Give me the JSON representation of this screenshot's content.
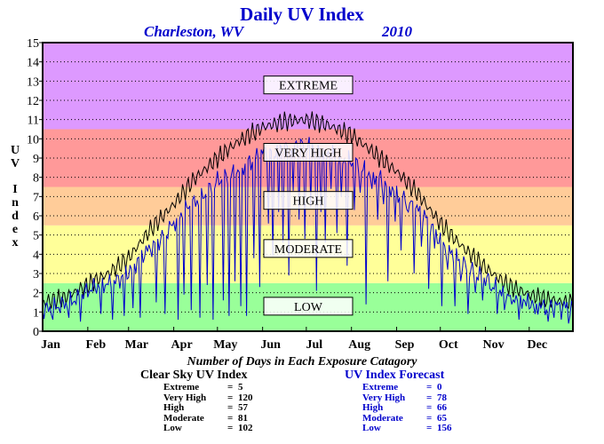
{
  "page": {
    "title": "Daily UV Index",
    "location": "Charleston, WV",
    "year": "2010"
  },
  "chart_data": {
    "type": "line",
    "title": "Daily UV Index",
    "ylabel": "UV Index",
    "ylim": [
      0,
      15
    ],
    "yticks": [
      0,
      1,
      2,
      3,
      4,
      5,
      6,
      7,
      8,
      9,
      10,
      11,
      12,
      13,
      14,
      15
    ],
    "xlim_days": [
      1,
      365
    ],
    "months": [
      {
        "label": "Jan",
        "day": 1
      },
      {
        "label": "Feb",
        "day": 32
      },
      {
        "label": "Mar",
        "day": 60
      },
      {
        "label": "Apr",
        "day": 91
      },
      {
        "label": "May",
        "day": 121
      },
      {
        "label": "Jun",
        "day": 152
      },
      {
        "label": "Jul",
        "day": 182
      },
      {
        "label": "Aug",
        "day": 213
      },
      {
        "label": "Sep",
        "day": 244
      },
      {
        "label": "Oct",
        "day": 274
      },
      {
        "label": "Nov",
        "day": 305
      },
      {
        "label": "Dec",
        "day": 335
      }
    ],
    "grid": true,
    "bands": [
      {
        "label": "LOW",
        "from": 0,
        "to": 2.5,
        "color": "#99ff99",
        "label_y": 1.3
      },
      {
        "label": "MODERATE",
        "from": 2.5,
        "to": 5.5,
        "color": "#ffff99",
        "label_y": 4.3
      },
      {
        "label": "HIGH",
        "from": 5.5,
        "to": 7.5,
        "color": "#ffcc99",
        "label_y": 6.8
      },
      {
        "label": "VERY HIGH",
        "from": 7.5,
        "to": 10.5,
        "color": "#ff9999",
        "label_y": 9.3
      },
      {
        "label": "EXTREME",
        "from": 10.5,
        "to": 15,
        "color": "#dd99ff",
        "label_y": 12.8
      }
    ],
    "series": [
      {
        "name": "Clear Sky UV Index",
        "color": "#000000",
        "points": [
          [
            1,
            1.5
          ],
          [
            15,
            1.7
          ],
          [
            32,
            2.4
          ],
          [
            46,
            3.0
          ],
          [
            60,
            3.8
          ],
          [
            74,
            5.2
          ],
          [
            91,
            6.6
          ],
          [
            105,
            7.9
          ],
          [
            121,
            9.0
          ],
          [
            136,
            9.9
          ],
          [
            152,
            10.6
          ],
          [
            167,
            10.9
          ],
          [
            182,
            11.0
          ],
          [
            197,
            10.7
          ],
          [
            213,
            10.2
          ],
          [
            228,
            9.3
          ],
          [
            244,
            8.3
          ],
          [
            258,
            7.2
          ],
          [
            274,
            5.6
          ],
          [
            289,
            4.4
          ],
          [
            305,
            3.3
          ],
          [
            320,
            2.4
          ],
          [
            335,
            1.9
          ],
          [
            350,
            1.6
          ],
          [
            365,
            1.5
          ]
        ]
      },
      {
        "name": "UV Index Forecast",
        "color": "#0000cc",
        "points": [
          [
            1,
            1.1
          ],
          [
            12,
            1.3
          ],
          [
            25,
            1.7
          ],
          [
            32,
            2.1
          ],
          [
            40,
            2.4
          ],
          [
            50,
            2.5
          ],
          [
            60,
            3.1
          ],
          [
            70,
            4.0
          ],
          [
            80,
            4.6
          ],
          [
            91,
            5.6
          ],
          [
            100,
            6.4
          ],
          [
            110,
            6.9
          ],
          [
            121,
            7.8
          ],
          [
            130,
            8.1
          ],
          [
            140,
            8.6
          ],
          [
            152,
            9.3
          ],
          [
            162,
            9.4
          ],
          [
            172,
            9.7
          ],
          [
            182,
            9.7
          ],
          [
            192,
            9.5
          ],
          [
            202,
            9.1
          ],
          [
            213,
            8.8
          ],
          [
            223,
            8.3
          ],
          [
            233,
            7.9
          ],
          [
            244,
            7.2
          ],
          [
            254,
            6.6
          ],
          [
            264,
            5.9
          ],
          [
            274,
            4.7
          ],
          [
            284,
            3.9
          ],
          [
            294,
            3.2
          ],
          [
            305,
            2.7
          ],
          [
            315,
            2.1
          ],
          [
            325,
            1.8
          ],
          [
            335,
            1.5
          ],
          [
            345,
            1.3
          ],
          [
            355,
            1.3
          ],
          [
            365,
            1.2
          ]
        ],
        "dips": [
          [
            8,
            0.6
          ],
          [
            19,
            0.7
          ],
          [
            27,
            0.5
          ],
          [
            41,
            0.9
          ],
          [
            49,
            0.6
          ],
          [
            57,
            0.8
          ],
          [
            63,
            1.2
          ],
          [
            68,
            0.7
          ],
          [
            79,
            1.5
          ],
          [
            85,
            0.9
          ],
          [
            94,
            0.6
          ],
          [
            98,
            1.9
          ],
          [
            103,
            1.1
          ],
          [
            109,
            0.7
          ],
          [
            114,
            2.4
          ],
          [
            118,
            0.6
          ],
          [
            125,
            1.6
          ],
          [
            129,
            0.8
          ],
          [
            133,
            2.6
          ],
          [
            137,
            1.3
          ],
          [
            141,
            0.8
          ],
          [
            146,
            3.8
          ],
          [
            150,
            2.3
          ],
          [
            156,
            5.6
          ],
          [
            159,
            3.9
          ],
          [
            163,
            6.2
          ],
          [
            166,
            4.6
          ],
          [
            170,
            2.9
          ],
          [
            173,
            7.3
          ],
          [
            177,
            5.8
          ],
          [
            181,
            4.8
          ],
          [
            185,
            6.4
          ],
          [
            189,
            2.1
          ],
          [
            192,
            6.2
          ],
          [
            195,
            4.6
          ],
          [
            199,
            7.4
          ],
          [
            203,
            5.1
          ],
          [
            206,
            7.0
          ],
          [
            210,
            3.4
          ],
          [
            215,
            6.3
          ],
          [
            219,
            7.2
          ],
          [
            223,
            1.4
          ],
          [
            227,
            7.4
          ],
          [
            231,
            5.8
          ],
          [
            235,
            6.6
          ],
          [
            238,
            2.6
          ],
          [
            243,
            5.7
          ],
          [
            247,
            4.2
          ],
          [
            252,
            6.2
          ],
          [
            256,
            3.0
          ],
          [
            261,
            4.4
          ],
          [
            266,
            2.2
          ],
          [
            270,
            4.3
          ],
          [
            275,
            1.3
          ],
          [
            279,
            3.2
          ],
          [
            284,
            1.3
          ],
          [
            288,
            2.6
          ],
          [
            293,
            0.9
          ],
          [
            298,
            2.0
          ],
          [
            303,
            1.6
          ],
          [
            309,
            2.1
          ],
          [
            313,
            0.9
          ],
          [
            318,
            1.1
          ],
          [
            323,
            1.4
          ],
          [
            328,
            0.6
          ],
          [
            333,
            1.3
          ],
          [
            339,
            0.9
          ],
          [
            343,
            1.2
          ],
          [
            348,
            0.5
          ],
          [
            352,
            0.7
          ],
          [
            357,
            0.6
          ],
          [
            362,
            0.4
          ]
        ]
      }
    ]
  },
  "stats": {
    "heading": "Number of Days in Each Exposure Catagory",
    "clear_sky": {
      "title": "Clear Sky UV Index",
      "rows": [
        {
          "label": "Extreme",
          "value": "5"
        },
        {
          "label": "Very High",
          "value": "120"
        },
        {
          "label": "High",
          "value": "57"
        },
        {
          "label": "Moderate",
          "value": "81"
        },
        {
          "label": "Low",
          "value": "102"
        }
      ]
    },
    "forecast": {
      "title": "UV Index Forecast",
      "rows": [
        {
          "label": "Extreme",
          "value": "0"
        },
        {
          "label": "Very High",
          "value": "78"
        },
        {
          "label": "High",
          "value": "66"
        },
        {
          "label": "Moderate",
          "value": "65"
        },
        {
          "label": "Low",
          "value": "156"
        }
      ]
    }
  }
}
